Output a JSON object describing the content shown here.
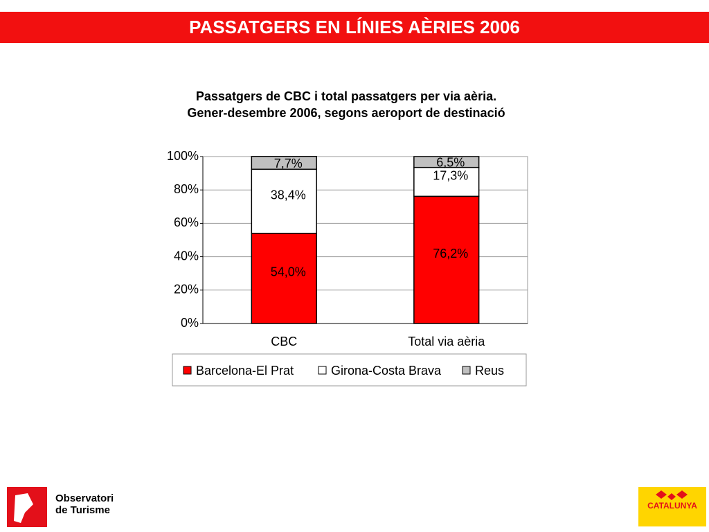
{
  "header": {
    "title": "PASSATGERS EN LÍNIES AÈRIES 2006"
  },
  "chart_data": {
    "type": "stacked_bar",
    "title": "Passatgers de CBC i total  passatgers per via aèria. Gener-desembre 2006, segons aeroport de destinació",
    "categories": [
      "CBC",
      "Total via aèria"
    ],
    "series": [
      {
        "name": "Barcelona-El Prat",
        "color": "#ff0000",
        "values": [
          54.0,
          76.2
        ],
        "value_labels": [
          "54,0%",
          "76,2%"
        ]
      },
      {
        "name": "Girona-Costa Brava",
        "color": "#ffffff",
        "values": [
          38.4,
          17.3
        ],
        "value_labels": [
          "38,4%",
          "17,3%"
        ]
      },
      {
        "name": "Reus",
        "color": "#c0c0c0",
        "values": [
          7.7,
          6.5
        ],
        "value_labels": [
          "7,7%",
          "6,5%"
        ]
      }
    ],
    "ylim": [
      0,
      100
    ],
    "yticks": [
      {
        "value": 0,
        "label": "0%"
      },
      {
        "value": 20,
        "label": "20%"
      },
      {
        "value": 40,
        "label": "40%"
      },
      {
        "value": 60,
        "label": "60%"
      },
      {
        "value": 80,
        "label": "80%"
      },
      {
        "value": 100,
        "label": "100%"
      }
    ],
    "grid": true,
    "legend": "bottom"
  },
  "logos": {
    "observatori": [
      "Observatori",
      "de Turisme"
    ],
    "catalunya": "CATALUNYA"
  }
}
